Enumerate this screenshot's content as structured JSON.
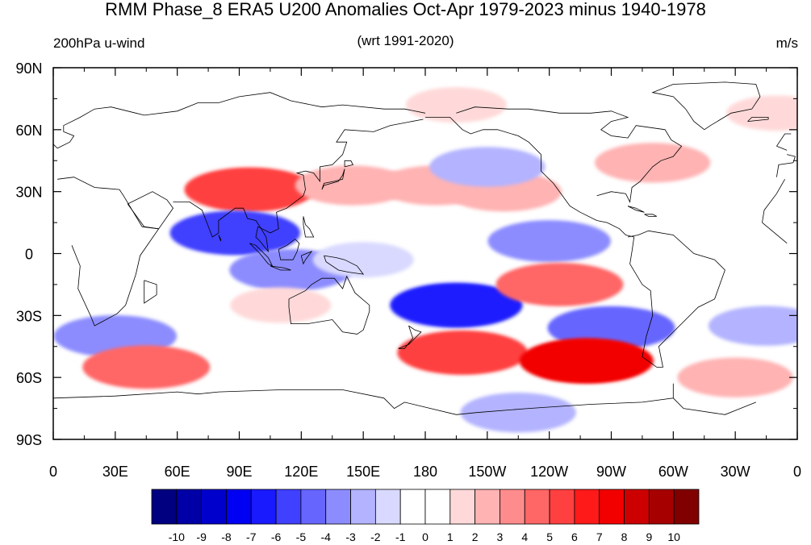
{
  "title": "RMM Phase_8 ERA5 U200 Anomalies Oct-Apr 1979-2023 minus 1940-1978",
  "left_subtitle": "200hPa u-wind",
  "center_subtitle": "(wrt 1991-2020)",
  "right_subtitle": "m/s",
  "lat_labels": [
    "90N",
    "60N",
    "30N",
    "0",
    "30S",
    "60S",
    "90S"
  ],
  "lon_labels": [
    "0",
    "30E",
    "60E",
    "90E",
    "120E",
    "150E",
    "180",
    "150W",
    "120W",
    "90W",
    "60W",
    "30W",
    "0"
  ],
  "colorbar": {
    "colors": [
      "#000080",
      "#0000a6",
      "#0000cc",
      "#0000f2",
      "#1a1aff",
      "#4040ff",
      "#6666ff",
      "#8c8cff",
      "#b3b3ff",
      "#d9d9ff",
      "#ffffff",
      "#ffffff",
      "#ffd9d9",
      "#ffb3b3",
      "#ff8c8c",
      "#ff6666",
      "#ff4040",
      "#ff1a1a",
      "#f20000",
      "#cc0000",
      "#a60000",
      "#800000"
    ],
    "labels": [
      "-10",
      "-9",
      "-8",
      "-7",
      "-6",
      "-5",
      "-4",
      "-3",
      "-2",
      "-1",
      "0",
      "1",
      "2",
      "3",
      "4",
      "5",
      "6",
      "7",
      "8",
      "9",
      "10"
    ]
  },
  "anomaly_features": [
    {
      "lon": 95,
      "lat": 31,
      "value": 6
    },
    {
      "lon": 145,
      "lat": 33,
      "value": 3
    },
    {
      "lon": 185,
      "lat": 33,
      "value": 3
    },
    {
      "lon": 218,
      "lat": 30,
      "value": 3
    },
    {
      "lon": 290,
      "lat": 44,
      "value": 3
    },
    {
      "lon": 195,
      "lat": 72,
      "value": 2
    },
    {
      "lon": 25,
      "lat": 8,
      "value": 1
    },
    {
      "lon": 350,
      "lat": 68,
      "value": 2
    },
    {
      "lon": 88,
      "lat": 10,
      "value": -6
    },
    {
      "lon": 115,
      "lat": -8,
      "value": -4
    },
    {
      "lon": 150,
      "lat": -3,
      "value": -2
    },
    {
      "lon": 240,
      "lat": 6,
      "value": -4
    },
    {
      "lon": 210,
      "lat": 42,
      "value": -3
    },
    {
      "lon": 195,
      "lat": -25,
      "value": -7
    },
    {
      "lon": 270,
      "lat": -36,
      "value": -5
    },
    {
      "lon": 30,
      "lat": -40,
      "value": -4
    },
    {
      "lon": 345,
      "lat": -35,
      "value": -3
    },
    {
      "lon": 225,
      "lat": -77,
      "value": -3
    },
    {
      "lon": 245,
      "lat": -15,
      "value": 5
    },
    {
      "lon": 198,
      "lat": -48,
      "value": 6
    },
    {
      "lon": 258,
      "lat": -52,
      "value": 8
    },
    {
      "lon": 45,
      "lat": -55,
      "value": 5
    },
    {
      "lon": 330,
      "lat": -60,
      "value": 3
    },
    {
      "lon": 110,
      "lat": -25,
      "value": 2
    }
  ],
  "coastlines": [
    [
      [
        -17,
        15
      ],
      [
        -16,
        21
      ],
      [
        -10,
        29
      ],
      [
        -6,
        36
      ],
      [
        2,
        36
      ],
      [
        10,
        37
      ],
      [
        20,
        32
      ],
      [
        32,
        31
      ],
      [
        34,
        28
      ],
      [
        43,
        13
      ],
      [
        51,
        12
      ],
      [
        42,
        -1
      ],
      [
        40,
        -10
      ],
      [
        35,
        -25
      ],
      [
        31,
        -29
      ],
      [
        20,
        -35
      ],
      [
        18,
        -30
      ],
      [
        12,
        -17
      ],
      [
        13,
        -6
      ],
      [
        9,
        4
      ],
      [
        -5,
        5
      ],
      [
        -17,
        15
      ]
    ],
    [
      [
        -10,
        37
      ],
      [
        -9,
        43
      ],
      [
        -2,
        44
      ],
      [
        -1,
        47
      ],
      [
        -5,
        48
      ],
      [
        2,
        51
      ],
      [
        8,
        54
      ],
      [
        10,
        57
      ],
      [
        5,
        59
      ],
      [
        5,
        62
      ],
      [
        13,
        66
      ],
      [
        20,
        70
      ],
      [
        28,
        71
      ],
      [
        40,
        68
      ],
      [
        44,
        67
      ],
      [
        60,
        69
      ],
      [
        70,
        73
      ],
      [
        80,
        73
      ],
      [
        90,
        76
      ],
      [
        105,
        78
      ],
      [
        115,
        74
      ],
      [
        130,
        71
      ],
      [
        140,
        72
      ],
      [
        160,
        70
      ],
      [
        170,
        70
      ],
      [
        180,
        68
      ]
    ],
    [
      [
        -180,
        66
      ],
      [
        -168,
        66
      ],
      [
        -162,
        60
      ],
      [
        -158,
        58
      ],
      [
        -152,
        60
      ],
      [
        -145,
        60
      ],
      [
        -135,
        57
      ],
      [
        -130,
        54
      ],
      [
        -124,
        48
      ],
      [
        -124,
        40
      ],
      [
        -118,
        34
      ],
      [
        -110,
        23
      ],
      [
        -105,
        20
      ],
      [
        -97,
        16
      ],
      [
        -92,
        15
      ],
      [
        -86,
        12
      ],
      [
        -83,
        9
      ],
      [
        -79,
        8
      ],
      [
        -80,
        1
      ],
      [
        -81,
        -5
      ],
      [
        -75,
        -15
      ],
      [
        -71,
        -18
      ],
      [
        -70,
        -30
      ],
      [
        -73,
        -40
      ],
      [
        -75,
        -50
      ],
      [
        -68,
        -55
      ],
      [
        -65,
        -55
      ],
      [
        -67,
        -45
      ],
      [
        -62,
        -40
      ],
      [
        -57,
        -35
      ],
      [
        -48,
        -26
      ],
      [
        -40,
        -22
      ],
      [
        -35,
        -8
      ],
      [
        -40,
        -3
      ],
      [
        -50,
        0
      ],
      [
        -60,
        9
      ],
      [
        -72,
        11
      ],
      [
        -77,
        9
      ],
      [
        -82,
        8
      ]
    ],
    [
      [
        -97,
        28
      ],
      [
        -90,
        30
      ],
      [
        -83,
        29
      ],
      [
        -81,
        25
      ],
      [
        -80,
        32
      ],
      [
        -76,
        35
      ],
      [
        -70,
        42
      ],
      [
        -66,
        45
      ],
      [
        -60,
        47
      ],
      [
        -56,
        52
      ],
      [
        -61,
        55
      ],
      [
        -64,
        60
      ],
      [
        -78,
        62
      ],
      [
        -82,
        56
      ],
      [
        -90,
        57
      ],
      [
        -95,
        60
      ],
      [
        -90,
        64
      ],
      [
        -82,
        66
      ],
      [
        -90,
        69
      ],
      [
        -100,
        68
      ],
      [
        -115,
        68
      ],
      [
        -130,
        70
      ],
      [
        -140,
        70
      ],
      [
        -156,
        71
      ],
      [
        -165,
        68
      ]
    ],
    [
      [
        -45,
        60
      ],
      [
        -50,
        64
      ],
      [
        -54,
        70
      ],
      [
        -60,
        76
      ],
      [
        -70,
        78
      ],
      [
        -60,
        82
      ],
      [
        -35,
        83
      ],
      [
        -20,
        82
      ],
      [
        -18,
        76
      ],
      [
        -22,
        70
      ],
      [
        -32,
        68
      ],
      [
        -42,
        62
      ],
      [
        -45,
        60
      ]
    ],
    [
      [
        -10,
        52
      ],
      [
        -6,
        58
      ],
      [
        -3,
        58
      ],
      [
        0,
        53
      ],
      [
        2,
        51
      ],
      [
        -5,
        50
      ],
      [
        -10,
        52
      ]
    ],
    [
      [
        36,
        24
      ],
      [
        44,
        13
      ],
      [
        51,
        12
      ],
      [
        58,
        22
      ],
      [
        55,
        26
      ],
      [
        48,
        30
      ],
      [
        36,
        24
      ]
    ],
    [
      [
        58,
        25
      ],
      [
        66,
        25
      ],
      [
        72,
        21
      ],
      [
        77,
        8
      ],
      [
        80,
        10
      ],
      [
        80,
        16
      ],
      [
        88,
        22
      ],
      [
        92,
        22
      ],
      [
        94,
        17
      ],
      [
        98,
        16
      ],
      [
        100,
        13
      ],
      [
        103,
        8
      ],
      [
        104,
        1
      ],
      [
        100,
        6
      ],
      [
        98,
        8
      ],
      [
        99,
        13
      ],
      [
        105,
        10
      ],
      [
        109,
        12
      ],
      [
        108,
        20
      ],
      [
        113,
        22
      ],
      [
        121,
        28
      ],
      [
        122,
        31
      ],
      [
        121,
        38
      ],
      [
        118,
        39
      ],
      [
        122,
        40
      ],
      [
        126,
        39
      ],
      [
        129,
        35
      ],
      [
        129,
        42
      ],
      [
        135,
        43
      ],
      [
        140,
        48
      ],
      [
        142,
        54
      ],
      [
        137,
        54
      ],
      [
        141,
        60
      ],
      [
        155,
        59
      ],
      [
        163,
        62
      ],
      [
        179,
        65
      ]
    ],
    [
      [
        130,
        31
      ],
      [
        131,
        34
      ],
      [
        136,
        35
      ],
      [
        140,
        36
      ],
      [
        141,
        41
      ],
      [
        140,
        38
      ],
      [
        138,
        35
      ],
      [
        131,
        33
      ],
      [
        130,
        31
      ]
    ],
    [
      [
        141,
        42
      ],
      [
        145,
        43
      ],
      [
        144,
        45
      ],
      [
        141,
        45
      ],
      [
        141,
        42
      ]
    ],
    [
      [
        114,
        -22
      ],
      [
        114,
        -26
      ],
      [
        115,
        -34
      ],
      [
        123,
        -34
      ],
      [
        135,
        -32
      ],
      [
        140,
        -38
      ],
      [
        147,
        -39
      ],
      [
        150,
        -37
      ],
      [
        153,
        -28
      ],
      [
        153,
        -25
      ],
      [
        146,
        -19
      ],
      [
        142,
        -11
      ],
      [
        140,
        -17
      ],
      [
        136,
        -12
      ],
      [
        130,
        -12
      ],
      [
        125,
        -15
      ],
      [
        122,
        -18
      ],
      [
        114,
        -22
      ]
    ],
    [
      [
        95,
        5
      ],
      [
        98,
        4
      ],
      [
        104,
        -2
      ],
      [
        106,
        -6
      ],
      [
        104,
        -5
      ],
      [
        100,
        0
      ],
      [
        95,
        5
      ]
    ],
    [
      [
        105,
        -6
      ],
      [
        112,
        -7
      ],
      [
        115,
        -8
      ],
      [
        110,
        -8
      ],
      [
        105,
        -6
      ]
    ],
    [
      [
        109,
        2
      ],
      [
        113,
        4
      ],
      [
        117,
        7
      ],
      [
        119,
        5
      ],
      [
        118,
        1
      ],
      [
        116,
        -3
      ],
      [
        110,
        -3
      ],
      [
        109,
        2
      ]
    ],
    [
      [
        131,
        -1
      ],
      [
        137,
        -2
      ],
      [
        141,
        -3
      ],
      [
        147,
        -6
      ],
      [
        150,
        -10
      ],
      [
        143,
        -9
      ],
      [
        138,
        -8
      ],
      [
        132,
        -4
      ],
      [
        131,
        -1
      ]
    ],
    [
      [
        120,
        -1
      ],
      [
        125,
        1
      ],
      [
        122,
        -3
      ],
      [
        121,
        -5
      ],
      [
        120,
        -1
      ]
    ],
    [
      [
        121,
        18
      ],
      [
        122,
        14
      ],
      [
        124,
        12
      ],
      [
        126,
        8
      ],
      [
        122,
        8
      ],
      [
        121,
        14
      ],
      [
        121,
        18
      ]
    ],
    [
      [
        172,
        -35
      ],
      [
        175,
        -37
      ],
      [
        178,
        -38
      ],
      [
        175,
        -41
      ],
      [
        172,
        -44
      ],
      [
        167,
        -46
      ],
      [
        170,
        -46
      ],
      [
        174,
        -41
      ],
      [
        172,
        -35
      ]
    ],
    [
      [
        44,
        -13
      ],
      [
        50,
        -15
      ],
      [
        50,
        -20
      ],
      [
        44,
        -24
      ],
      [
        44,
        -13
      ]
    ],
    [
      [
        -60,
        -63
      ],
      [
        -60,
        -70
      ],
      [
        -75,
        -72
      ],
      [
        -100,
        -73
      ],
      [
        -130,
        -75
      ],
      [
        -155,
        -77
      ],
      [
        -165,
        -78
      ],
      [
        170,
        -72
      ],
      [
        165,
        -75
      ],
      [
        160,
        -70
      ],
      [
        140,
        -66
      ],
      [
        110,
        -66
      ],
      [
        80,
        -67
      ],
      [
        70,
        -68
      ],
      [
        60,
        -67
      ],
      [
        30,
        -69
      ],
      [
        0,
        -70
      ],
      [
        -20,
        -72
      ],
      [
        -35,
        -78
      ],
      [
        -55,
        -75
      ],
      [
        -60,
        -70
      ]
    ],
    [
      [
        -82,
        23
      ],
      [
        -78,
        22
      ],
      [
        -74,
        20
      ],
      [
        -78,
        21
      ],
      [
        -82,
        23
      ]
    ],
    [
      [
        -74,
        19
      ],
      [
        -70,
        19
      ],
      [
        -68,
        18
      ],
      [
        -72,
        18
      ],
      [
        -74,
        19
      ]
    ],
    [
      [
        -24,
        64
      ],
      [
        -14,
        65
      ],
      [
        -14,
        66
      ],
      [
        -22,
        66
      ],
      [
        -24,
        64
      ]
    ],
    [
      [
        80,
        9
      ],
      [
        81,
        7
      ],
      [
        81,
        6
      ],
      [
        80,
        9
      ]
    ]
  ]
}
